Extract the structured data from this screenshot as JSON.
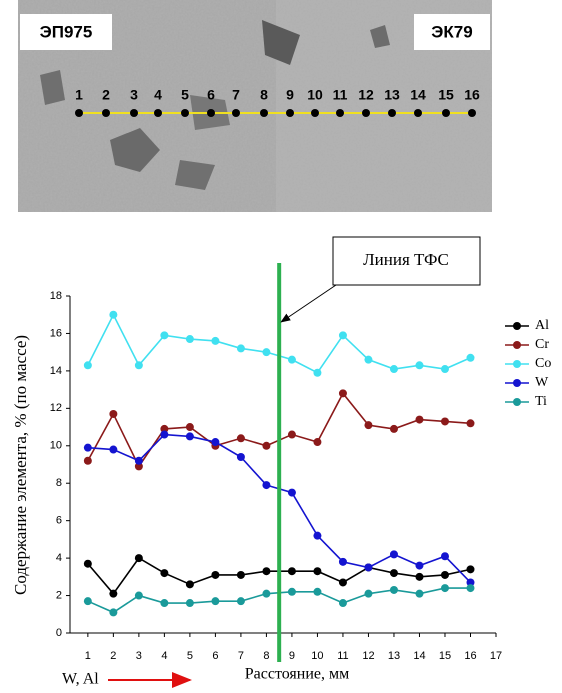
{
  "micrograph": {
    "left_label": "ЭП975",
    "right_label": "ЭК79",
    "points": [
      "1",
      "2",
      "3",
      "4",
      "5",
      "6",
      "7",
      "8",
      "9",
      "10",
      "11",
      "12",
      "13",
      "14",
      "15",
      "16"
    ]
  },
  "chart_data": {
    "type": "line",
    "x": [
      1,
      2,
      3,
      4,
      5,
      6,
      7,
      8,
      9,
      10,
      11,
      12,
      13,
      14,
      15,
      16
    ],
    "xlim": [
      0.3,
      17
    ],
    "xticks": [
      1,
      2,
      3,
      4,
      5,
      6,
      7,
      8,
      9,
      10,
      11,
      12,
      13,
      14,
      15,
      16,
      17
    ],
    "ylim": [
      0,
      18
    ],
    "yticks": [
      0,
      2,
      4,
      6,
      8,
      10,
      12,
      14,
      16,
      18
    ],
    "xlabel": "Расстояние, мм",
    "ylabel": "Содержание элемента,  % (по массе)",
    "legend": "right",
    "vline": {
      "x": 8.5,
      "color": "#2db050",
      "label": "Линия ТФС"
    },
    "direction_label": "W, Al",
    "series": [
      {
        "name": "Al",
        "color": "#000000",
        "values": [
          3.7,
          2.1,
          4.0,
          3.2,
          2.6,
          3.1,
          3.1,
          3.3,
          3.3,
          3.3,
          2.7,
          3.5,
          3.2,
          3.0,
          3.1,
          3.4
        ]
      },
      {
        "name": "Cr",
        "color": "#8b1a1a",
        "values": [
          9.2,
          11.7,
          8.9,
          10.9,
          11.0,
          10.0,
          10.4,
          10.0,
          10.6,
          10.2,
          12.8,
          11.1,
          10.9,
          11.4,
          11.3,
          11.2
        ]
      },
      {
        "name": "Co",
        "color": "#40e0f0",
        "values": [
          14.3,
          17.0,
          14.3,
          15.9,
          15.7,
          15.6,
          15.2,
          15.0,
          14.6,
          13.9,
          15.9,
          14.6,
          14.1,
          14.3,
          14.1,
          14.7
        ]
      },
      {
        "name": "W",
        "color": "#1414d0",
        "values": [
          9.9,
          9.8,
          9.2,
          10.6,
          10.5,
          10.2,
          9.4,
          7.9,
          7.5,
          5.2,
          3.8,
          3.5,
          4.2,
          3.6,
          4.1,
          2.7
        ]
      },
      {
        "name": "Ti",
        "color": "#1a9a9a",
        "values": [
          1.7,
          1.1,
          2.0,
          1.6,
          1.6,
          1.7,
          1.7,
          2.1,
          2.2,
          2.2,
          1.6,
          2.1,
          2.3,
          2.1,
          2.4,
          2.4
        ]
      }
    ]
  }
}
